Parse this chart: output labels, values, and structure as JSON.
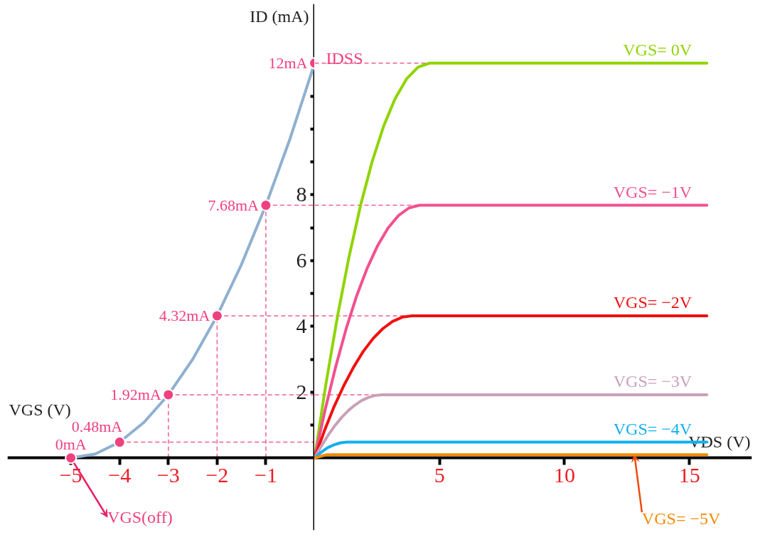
{
  "chart_data": [
    {
      "type": "line",
      "xlabel": "VGS (V)",
      "ylabel": "ID (mA)",
      "xlim": [
        -6.3,
        0
      ],
      "ylim": [
        -2.2,
        13.8
      ],
      "xticks": [
        {
          "value": -5,
          "label": "−5"
        },
        {
          "value": -4,
          "label": "−4"
        },
        {
          "value": -3,
          "label": "−3"
        },
        {
          "value": -2,
          "label": "−2"
        },
        {
          "value": -1,
          "label": "−1"
        }
      ],
      "yticks": [
        {
          "value": 1,
          "label": null
        },
        2,
        {
          "value": 3,
          "label": null
        },
        4,
        {
          "value": 5,
          "label": null
        },
        6,
        {
          "value": 7,
          "label": null
        },
        8,
        {
          "value": 9,
          "label": null
        },
        {
          "value": 10,
          "label": null
        },
        {
          "value": 11,
          "label": null
        }
      ],
      "series": [
        {
          "type": "line",
          "color": "#8fb0d0",
          "marker": "none",
          "x": [
            -5,
            -4.5,
            -4,
            -3.5,
            -3,
            -2.5,
            -2,
            -1.5,
            -1,
            -0.5,
            0
          ],
          "values": [
            0,
            0.12,
            0.48,
            1.08,
            1.92,
            3,
            4.32,
            5.88,
            7.68,
            9.72,
            12
          ]
        },
        {
          "type": "scatter",
          "color": "#f04080",
          "marker": "circle",
          "x": [
            -5,
            -4,
            -3,
            -2,
            -1,
            0
          ],
          "values": [
            0,
            0.48,
            1.92,
            4.32,
            7.68,
            12
          ],
          "value_labels": [
            "0mA",
            "0.48mA",
            "1.92mA",
            "4.32mA",
            "7.68mA",
            "12mA"
          ]
        }
      ],
      "ref_lines": [
        {
          "axis": "y",
          "value": 0.48,
          "color": "#f06090",
          "line_style": "dashed"
        },
        {
          "axis": "y",
          "value": 1.92,
          "color": "#f06090",
          "line_style": "dashed"
        },
        {
          "axis": "y",
          "value": 4.32,
          "color": "#f06090",
          "line_style": "dashed"
        },
        {
          "axis": "y",
          "value": 7.68,
          "color": "#f06090",
          "line_style": "dashed"
        },
        {
          "axis": "x",
          "value": -3,
          "color": "#f06090",
          "line_style": "dashed"
        },
        {
          "axis": "x",
          "value": -2,
          "color": "#f06090",
          "line_style": "dashed"
        },
        {
          "axis": "x",
          "value": -1,
          "color": "#f06090",
          "line_style": "dashed"
        }
      ],
      "annotations": [
        {
          "text": "VGS(off)",
          "x": -5,
          "y": 0
        }
      ]
    },
    {
      "type": "line",
      "xlabel": "VDS (V)",
      "xlim": [
        0,
        17.5
      ],
      "ylim": [
        -2.2,
        13.8
      ],
      "tick_labels": "x",
      "xticks": [
        5,
        10,
        15
      ],
      "series": [
        {
          "name": "VGS= 0V",
          "color": "#8fd400",
          "x": [
            0,
            0.46,
            0.92,
            1.38,
            1.84,
            2.3,
            2.76,
            3.22,
            3.68,
            4.14,
            4.6,
            15.7
          ],
          "values": [
            0,
            2.28,
            4.32,
            6.12,
            7.68,
            9,
            10.08,
            10.92,
            11.52,
            11.88,
            12,
            12
          ]
        },
        {
          "name": "VGS= −1V",
          "color": "#f2508f",
          "x": [
            0,
            0.42,
            0.84,
            1.26,
            1.68,
            2.1,
            2.52,
            2.94,
            3.36,
            3.78,
            4.2,
            15.7
          ],
          "values": [
            0,
            1.46,
            2.76,
            3.92,
            4.92,
            5.76,
            6.45,
            6.99,
            7.37,
            7.6,
            7.68,
            7.68
          ]
        },
        {
          "name": "VGS= −2V",
          "color": "#f01010",
          "x": [
            0,
            0.39,
            0.78,
            1.17,
            1.56,
            1.95,
            2.34,
            2.73,
            3.12,
            3.51,
            3.9,
            15.7
          ],
          "values": [
            0,
            0.82,
            1.56,
            2.2,
            2.76,
            3.24,
            3.63,
            3.93,
            4.15,
            4.28,
            4.32,
            4.32
          ]
        },
        {
          "name": "VGS= −3V",
          "color": "#c9a0b8",
          "x": [
            0,
            0.27,
            0.54,
            0.81,
            1.08,
            1.35,
            1.62,
            1.89,
            2.16,
            2.43,
            2.7,
            15.7
          ],
          "values": [
            0,
            0.36,
            0.69,
            0.98,
            1.23,
            1.44,
            1.61,
            1.75,
            1.84,
            1.9,
            1.92,
            1.92
          ]
        },
        {
          "name": "VGS= −4V",
          "color": "#10b0f0",
          "x": [
            0,
            0.26,
            0.52,
            0.78,
            1.04,
            1.3,
            15.7
          ],
          "values": [
            0,
            0.17,
            0.31,
            0.4,
            0.46,
            0.48,
            0.48
          ]
        },
        {
          "name": "VGS= −5V",
          "color": "#f08a00",
          "x": [
            0,
            0.5,
            15.7
          ],
          "values": [
            0,
            0.1,
            0.1
          ]
        }
      ],
      "ref_lines": [
        {
          "axis": "y",
          "value": 12,
          "color": "#f06090",
          "line_style": "dashed"
        },
        {
          "axis": "y",
          "value": 7.68,
          "color": "#f06090",
          "line_style": "dashed"
        },
        {
          "axis": "y",
          "value": 4.32,
          "color": "#f06090",
          "line_style": "dashed"
        },
        {
          "axis": "y",
          "value": 1.92,
          "color": "#f06090",
          "line_style": "dashed"
        }
      ],
      "annotations": [
        {
          "text": "IDSS",
          "x": 0,
          "y": 12
        }
      ]
    }
  ]
}
